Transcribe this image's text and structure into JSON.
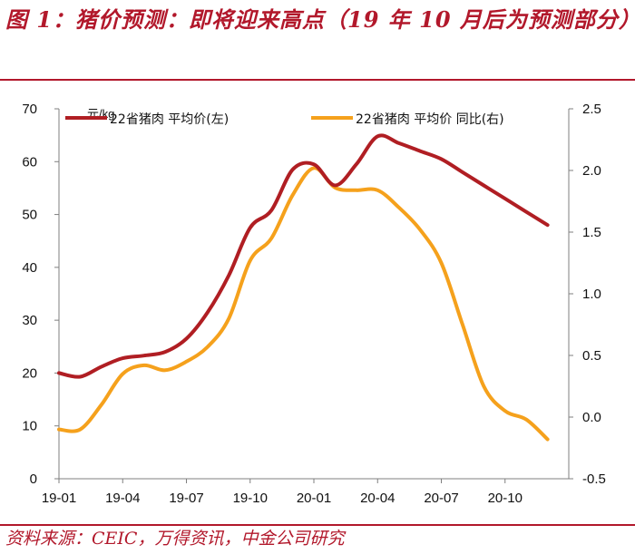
{
  "title": "图 1：猪价预测：即将迎来高点（19 年 10 月后为预测部分）",
  "source": "资料来源：CEIC，万得资讯，中金公司研究",
  "chart_data": {
    "type": "line",
    "x": [
      "19-01",
      "19-02",
      "19-03",
      "19-04",
      "19-05",
      "19-06",
      "19-07",
      "19-08",
      "19-09",
      "19-10",
      "19-11",
      "19-12",
      "20-01",
      "20-02",
      "20-03",
      "20-04",
      "20-05",
      "20-06",
      "20-07",
      "20-08",
      "20-09",
      "20-10",
      "20-11",
      "20-12"
    ],
    "x_tick_labels": [
      "19-01",
      "19-04",
      "19-07",
      "19-10",
      "20-01",
      "20-04",
      "20-07",
      "20-10"
    ],
    "unit_label": "元/kg",
    "y_left": {
      "lim": [
        0,
        70
      ],
      "ticks": [
        "0",
        "10",
        "20",
        "30",
        "40",
        "50",
        "60",
        "70"
      ]
    },
    "y_right": {
      "lim": [
        -0.5,
        2.5
      ],
      "ticks": [
        "-0.5",
        "0.0",
        "0.5",
        "1.0",
        "1.5",
        "2.0",
        "2.5"
      ]
    },
    "series": [
      {
        "name": "22省猪肉 平均价(左)",
        "axis": "left",
        "color": "#b01e23",
        "values": [
          20.0,
          19.3,
          21.2,
          22.8,
          23.3,
          24.0,
          26.5,
          31.5,
          38.5,
          47.5,
          50.8,
          58.5,
          59.5,
          55.5,
          59.5,
          64.8,
          63.5,
          62.0,
          60.5,
          58.0,
          55.5,
          53.0,
          50.5,
          48.0
        ]
      },
      {
        "name": "22省猪肉 平均价 同比(右)",
        "axis": "right",
        "color": "#f5a11c",
        "values": [
          -0.1,
          -0.1,
          0.1,
          0.35,
          0.42,
          0.38,
          0.45,
          0.57,
          0.8,
          1.27,
          1.45,
          1.8,
          2.02,
          1.86,
          1.84,
          1.84,
          1.7,
          1.52,
          1.25,
          0.75,
          0.25,
          0.05,
          -0.02,
          -0.18
        ]
      }
    ]
  }
}
